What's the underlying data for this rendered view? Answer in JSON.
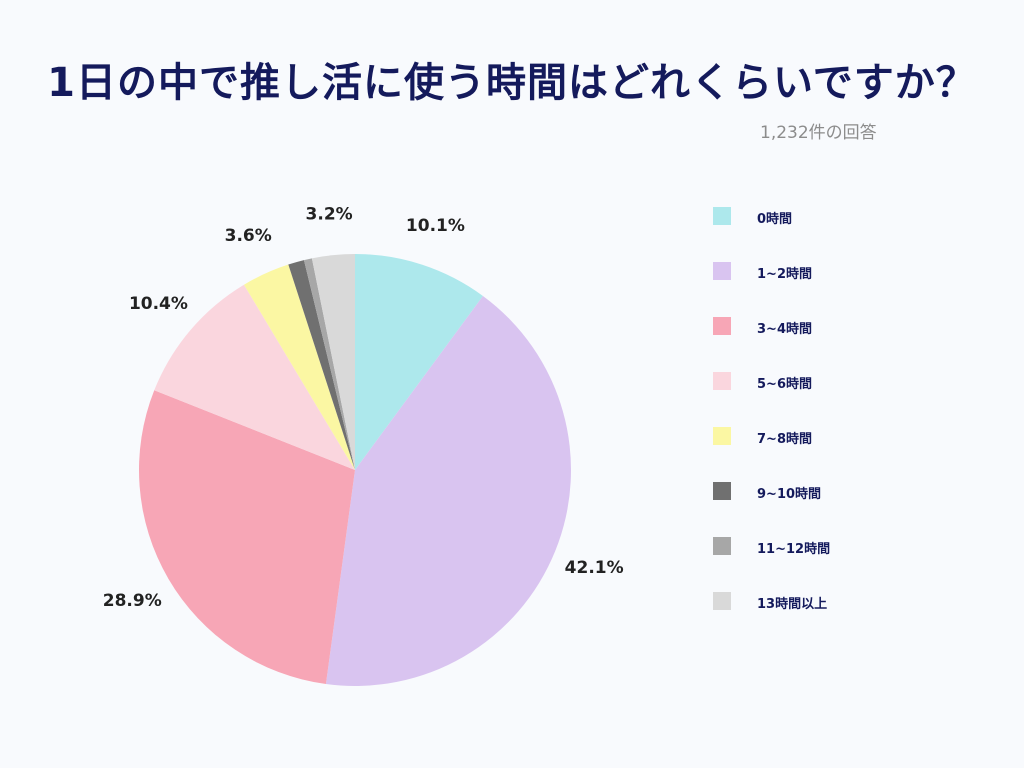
{
  "title": "1日の中で推し活に使う時間はどれくらいですか？",
  "subtitle": "1,232件の回答",
  "chart_data": {
    "type": "pie",
    "title": "1日の中で推し活に使う時間はどれくらいですか？",
    "categories": [
      "0時間",
      "1~2時間",
      "3~4時間",
      "5~6時間",
      "7~8時間",
      "9~10時間",
      "11~12時間",
      "13時間以上"
    ],
    "values": [
      10.1,
      42.1,
      28.9,
      10.4,
      3.6,
      1.2,
      0.6,
      3.2
    ],
    "labels": [
      "10.1%",
      "42.1%",
      "28.9%",
      "10.4%",
      "3.6%",
      "",
      "",
      "3.2%"
    ],
    "colors": [
      "#ade8ec",
      "#d9c4f0",
      "#f7a6b6",
      "#fad6de",
      "#fbf7a3",
      "#707070",
      "#a7a7a7",
      "#d9d9d9"
    ],
    "legend_position": "right"
  }
}
